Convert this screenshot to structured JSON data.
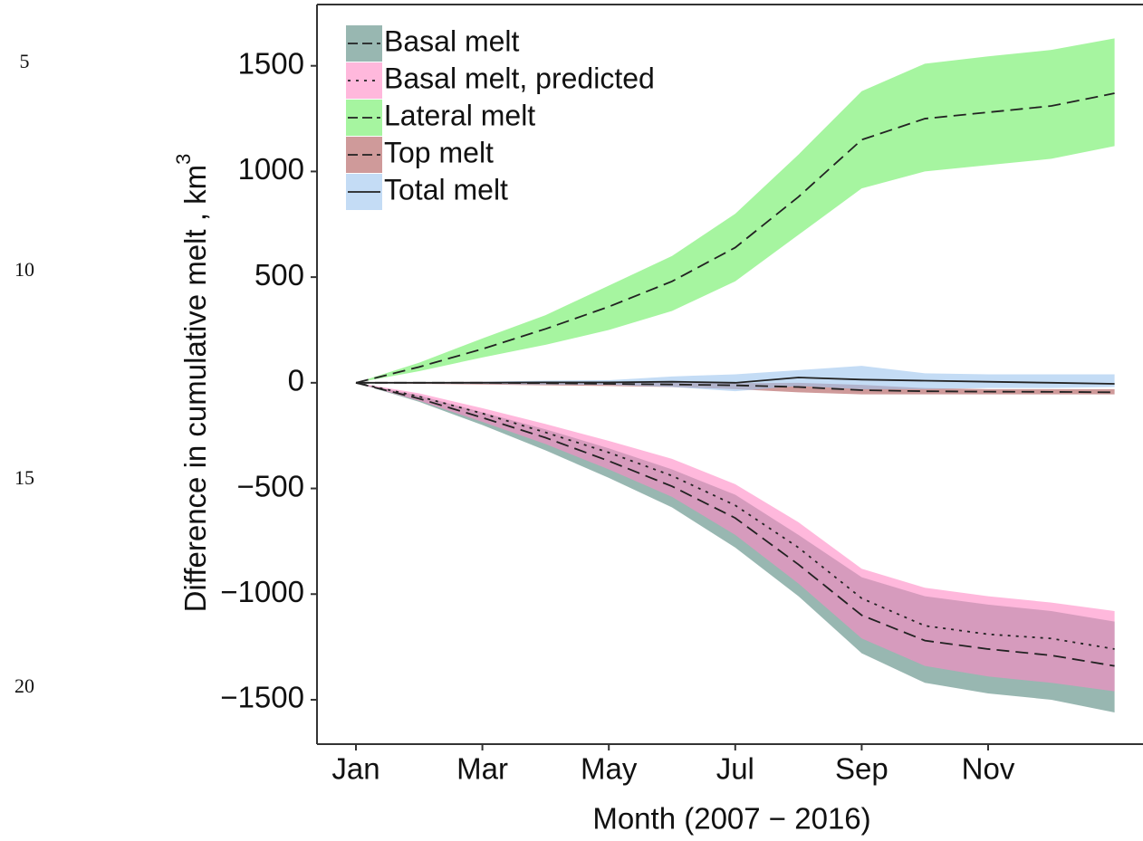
{
  "line_numbers": [
    5,
    10,
    15,
    20
  ],
  "chart_data": {
    "type": "ribbon-line",
    "y_label": "Difference in cumulative melt , km",
    "y_label_superscript": "3",
    "x_label": "Month (2007 − 2016)",
    "categories": [
      "Jan",
      null,
      "Mar",
      null,
      "May",
      null,
      "Jul",
      null,
      "Sep",
      null,
      "Nov",
      null,
      null
    ],
    "ylim": [
      -1710,
      1790
    ],
    "yticks": [
      {
        "value": -1500,
        "label": "−1500"
      },
      {
        "value": -1000,
        "label": "−1000"
      },
      {
        "value": -500,
        "label": "−500"
      },
      0,
      500,
      1000,
      1500
    ],
    "legend": "top-left",
    "series": [
      {
        "name": "Basal melt",
        "color": "#53877d",
        "line": "dashed",
        "values": [
          0,
          -75,
          -165,
          -260,
          -370,
          -490,
          -640,
          -860,
          -1100,
          -1220,
          -1260,
          -1290,
          -1340
        ],
        "lower": [
          0,
          -90,
          -200,
          -320,
          -450,
          -590,
          -780,
          -1010,
          -1280,
          -1420,
          -1470,
          -1500,
          -1560
        ],
        "upper": [
          0,
          -60,
          -140,
          -220,
          -310,
          -410,
          -530,
          -720,
          -920,
          -1010,
          -1050,
          -1080,
          -1130
        ]
      },
      {
        "name": "Basal melt, predicted",
        "color": "#ff89c5",
        "line": "dotted",
        "values": [
          0,
          -65,
          -145,
          -235,
          -330,
          -440,
          -580,
          -780,
          -1020,
          -1150,
          -1190,
          -1210,
          -1260
        ],
        "lower": [
          0,
          -85,
          -185,
          -290,
          -410,
          -540,
          -720,
          -950,
          -1210,
          -1340,
          -1390,
          -1420,
          -1460
        ],
        "upper": [
          0,
          -50,
          -120,
          -195,
          -275,
          -360,
          -480,
          -660,
          -880,
          -970,
          -1010,
          -1040,
          -1080
        ]
      },
      {
        "name": "Lateral melt",
        "color": "#6bee61",
        "line": "dashed",
        "values": [
          0,
          75,
          160,
          255,
          360,
          480,
          640,
          880,
          1150,
          1250,
          1280,
          1310,
          1370
        ],
        "lower": [
          0,
          55,
          120,
          180,
          250,
          340,
          480,
          700,
          920,
          1000,
          1030,
          1060,
          1120
        ],
        "upper": [
          0,
          95,
          210,
          320,
          460,
          600,
          800,
          1080,
          1380,
          1510,
          1545,
          1575,
          1630
        ]
      },
      {
        "name": "Top melt",
        "color": "#af5757",
        "line": "dashed",
        "values": [
          0,
          0,
          0,
          -2,
          -5,
          -8,
          -12,
          -20,
          -35,
          -40,
          -42,
          -43,
          -45
        ],
        "lower": [
          0,
          -5,
          -8,
          -12,
          -15,
          -20,
          -30,
          -45,
          -55,
          -55,
          -55,
          -55,
          -55
        ],
        "upper": [
          0,
          3,
          5,
          5,
          3,
          0,
          -2,
          0,
          -10,
          -25,
          -30,
          -30,
          -30
        ]
      },
      {
        "name": "Total melt",
        "color": "#9dc5ee",
        "line": "solid",
        "values": [
          0,
          0,
          0,
          2,
          2,
          5,
          0,
          25,
          15,
          10,
          5,
          0,
          -5
        ],
        "lower": [
          0,
          -3,
          -5,
          -8,
          -10,
          -20,
          -40,
          -15,
          -30,
          -30,
          -25,
          -25,
          -20
        ],
        "upper": [
          0,
          3,
          5,
          10,
          12,
          30,
          40,
          60,
          80,
          45,
          40,
          40,
          40
        ]
      }
    ]
  }
}
